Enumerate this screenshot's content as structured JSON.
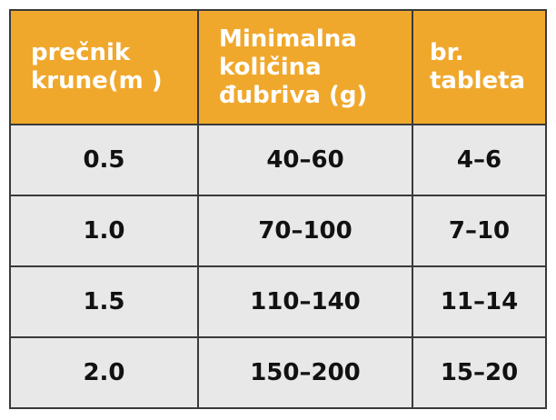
{
  "table": {
    "header": [
      [
        "prečnik",
        "krune(m )"
      ],
      [
        "Minimalna",
        "količina",
        "đubriva (g)"
      ],
      [
        "br.",
        "tableta"
      ]
    ],
    "rows": [
      [
        "0.5",
        "40–60",
        "4–6"
      ],
      [
        "1.0",
        "70–100",
        "7–10"
      ],
      [
        "1.5",
        "110–140",
        "11–14"
      ],
      [
        "2.0",
        "150–200",
        "15–20"
      ]
    ]
  }
}
